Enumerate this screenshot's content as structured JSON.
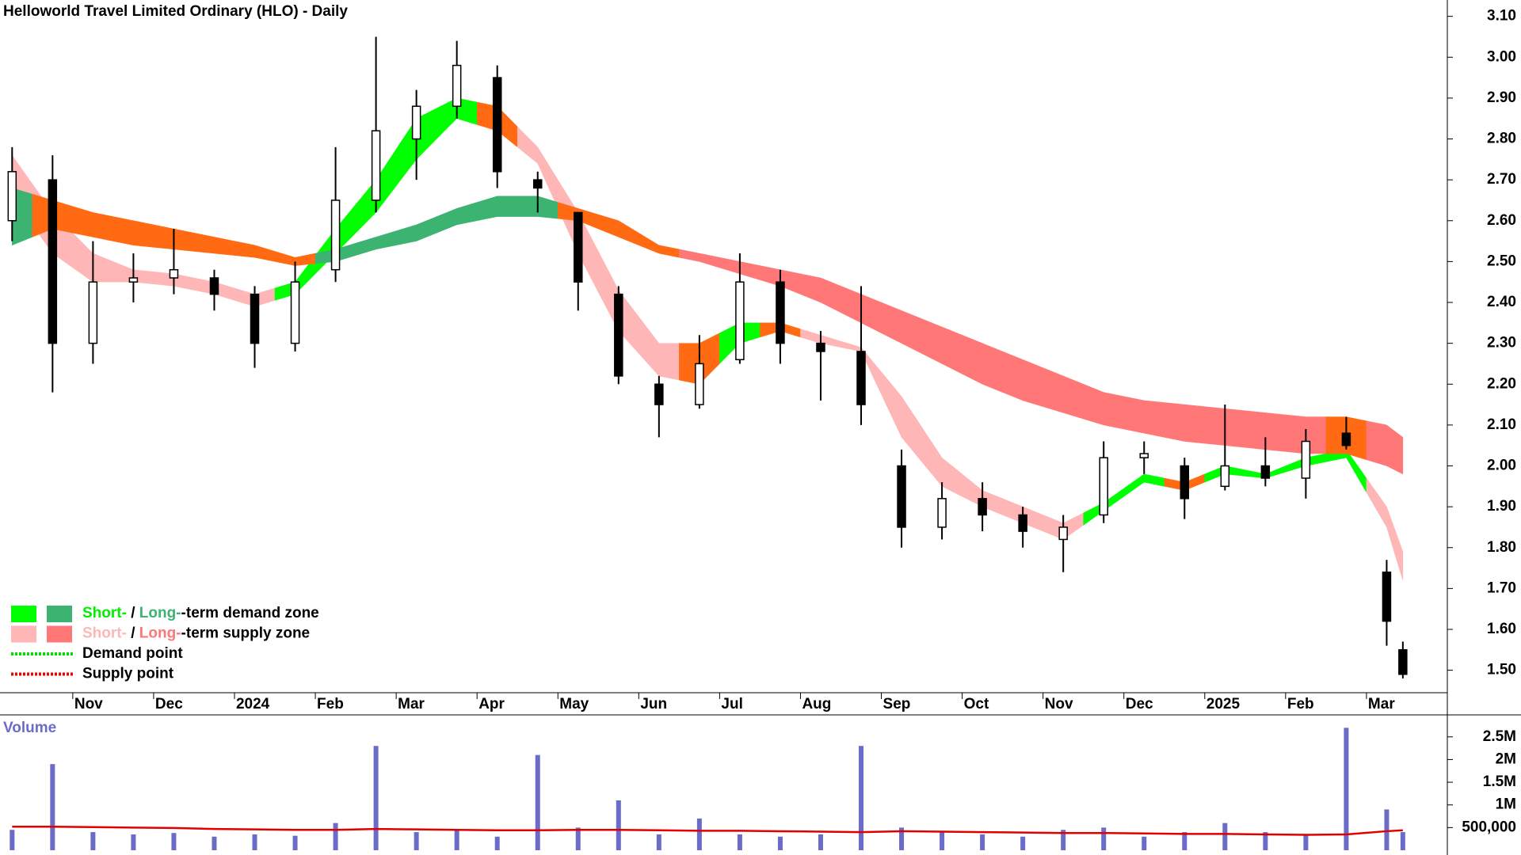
{
  "chart_data": [
    {
      "type": "candlestick",
      "title": "Helloworld Travel Limited Ordinary (HLO) - Daily",
      "x": [
        0.25,
        0.75,
        1.25,
        1.75,
        2.25,
        2.75,
        3.25,
        3.75,
        4.25,
        4.75,
        5.25,
        5.75,
        6.25,
        6.75,
        7.25,
        7.75,
        8.25,
        8.75,
        9.25,
        9.75,
        10.25,
        10.75,
        11.25,
        11.75,
        12.25,
        12.75,
        13.25,
        13.75,
        14.25,
        14.75,
        15.25,
        15.75,
        16.25,
        16.75,
        17.25,
        17.45
      ],
      "open": [
        2.6,
        2.7,
        2.3,
        2.45,
        2.46,
        2.46,
        2.42,
        2.3,
        2.48,
        2.65,
        2.8,
        2.88,
        2.95,
        2.7,
        2.62,
        2.42,
        2.2,
        2.15,
        2.26,
        2.45,
        2.3,
        2.28,
        2.0,
        1.85,
        1.92,
        1.88,
        1.82,
        1.88,
        2.02,
        2.0,
        1.95,
        2.0,
        1.97,
        2.08,
        1.74,
        1.55
      ],
      "high": [
        2.78,
        2.76,
        2.55,
        2.52,
        2.58,
        2.48,
        2.44,
        2.5,
        2.78,
        3.05,
        2.92,
        3.04,
        2.98,
        2.72,
        2.62,
        2.44,
        2.22,
        2.32,
        2.52,
        2.48,
        2.33,
        2.44,
        2.04,
        1.96,
        1.96,
        1.9,
        1.88,
        2.06,
        2.06,
        2.02,
        2.15,
        2.07,
        2.09,
        2.12,
        1.77,
        1.57
      ],
      "low": [
        2.55,
        2.18,
        2.25,
        2.4,
        2.42,
        2.38,
        2.24,
        2.28,
        2.45,
        2.62,
        2.7,
        2.85,
        2.68,
        2.62,
        2.38,
        2.2,
        2.07,
        2.14,
        2.25,
        2.25,
        2.16,
        2.1,
        1.8,
        1.82,
        1.84,
        1.8,
        1.74,
        1.86,
        1.98,
        1.87,
        1.94,
        1.95,
        1.92,
        2.04,
        1.56,
        1.48
      ],
      "close": [
        2.72,
        2.3,
        2.45,
        2.46,
        2.48,
        2.42,
        2.3,
        2.45,
        2.65,
        2.82,
        2.88,
        2.98,
        2.72,
        2.68,
        2.45,
        2.22,
        2.15,
        2.25,
        2.45,
        2.3,
        2.28,
        2.15,
        1.85,
        1.92,
        1.88,
        1.84,
        1.85,
        2.02,
        2.03,
        1.92,
        2.0,
        1.97,
        2.06,
        2.05,
        1.62,
        1.49
      ],
      "zones": [
        {
          "lower": [
            2.66,
            2.52,
            2.45,
            2.45,
            2.44,
            2.42,
            2.39,
            2.42,
            2.52,
            2.62,
            2.75,
            2.85,
            2.82,
            2.74,
            2.52,
            2.33,
            2.22,
            2.2,
            2.3,
            2.33,
            2.3,
            2.28,
            2.07,
            1.95,
            1.9,
            1.86,
            1.82,
            1.89,
            1.96,
            1.94,
            1.98,
            1.97,
            2.0,
            2.02,
            1.85,
            1.72
          ],
          "upper": [
            2.76,
            2.62,
            2.52,
            2.48,
            2.47,
            2.45,
            2.42,
            2.45,
            2.58,
            2.7,
            2.85,
            2.9,
            2.88,
            2.78,
            2.62,
            2.43,
            2.3,
            2.3,
            2.35,
            2.35,
            2.32,
            2.29,
            2.17,
            2.02,
            1.94,
            1.9,
            1.86,
            1.91,
            1.98,
            1.96,
            2.0,
            1.98,
            2.02,
            2.04,
            1.9,
            1.79
          ],
          "colors": [
            "#ffb6b6",
            "#ffb6b6",
            "#ffb6b6",
            "#ffb6b6",
            "#ffb6b6",
            "#ffb6b6",
            "#ffb6b6",
            "#00ff00",
            "#00ff00",
            "#00ff00",
            "#00ff00",
            "#00ff00",
            "#ff6a13",
            "#ffb6b6",
            "#ffb6b6",
            "#ffb6b6",
            "#ffb6b6",
            "#ff6a13",
            "#00ff00",
            "#ff6a13",
            "#ffb6b6",
            "#ffb6b6",
            "#ffb6b6",
            "#ffb6b6",
            "#ffb6b6",
            "#ffb6b6",
            "#ffb6b6",
            "#00ff00",
            "#00ff00",
            "#ff6a13",
            "#00ff00",
            "#00ff00",
            "#00ff00",
            "#00ff00",
            "#ffb6b6",
            "#ffb6b6"
          ]
        },
        {
          "lower": [
            2.54,
            2.58,
            2.56,
            2.54,
            2.53,
            2.52,
            2.51,
            2.49,
            2.5,
            2.53,
            2.55,
            2.59,
            2.61,
            2.61,
            2.6,
            2.56,
            2.52,
            2.5,
            2.47,
            2.44,
            2.4,
            2.35,
            2.3,
            2.25,
            2.2,
            2.16,
            2.13,
            2.1,
            2.08,
            2.06,
            2.05,
            2.04,
            2.03,
            2.03,
            2.0,
            1.98
          ],
          "upper": [
            2.68,
            2.65,
            2.62,
            2.6,
            2.58,
            2.56,
            2.54,
            2.51,
            2.53,
            2.56,
            2.59,
            2.63,
            2.66,
            2.66,
            2.63,
            2.6,
            2.54,
            2.52,
            2.5,
            2.48,
            2.46,
            2.42,
            2.38,
            2.34,
            2.3,
            2.26,
            2.22,
            2.18,
            2.16,
            2.15,
            2.14,
            2.13,
            2.12,
            2.12,
            2.1,
            2.07
          ],
          "colors": [
            "#3cb371",
            "#ff6a13",
            "#ff6a13",
            "#ff6a13",
            "#ff6a13",
            "#ff6a13",
            "#ff6a13",
            "#ff6a13",
            "#3cb371",
            "#3cb371",
            "#3cb371",
            "#3cb371",
            "#3cb371",
            "#3cb371",
            "#ff6a13",
            "#ff6a13",
            "#ff6a13",
            "#ff7777",
            "#ff7777",
            "#ff7777",
            "#ff7777",
            "#ff7777",
            "#ff7777",
            "#ff7777",
            "#ff7777",
            "#ff7777",
            "#ff7777",
            "#ff7777",
            "#ff7777",
            "#ff7777",
            "#ff7777",
            "#ff7777",
            "#ff7777",
            "#ff6a13",
            "#ff7777",
            "#ff7777"
          ]
        }
      ],
      "xlim": [
        0.1,
        18
      ],
      "xticks": [
        {
          "value": 1,
          "label": "Nov"
        },
        {
          "value": 2,
          "label": "Dec"
        },
        {
          "value": 3,
          "label": "2024"
        },
        {
          "value": 4,
          "label": "Feb"
        },
        {
          "value": 5,
          "label": "Mar"
        },
        {
          "value": 6,
          "label": "Apr"
        },
        {
          "value": 7,
          "label": "May"
        },
        {
          "value": 8,
          "label": "Jun"
        },
        {
          "value": 9,
          "label": "Jul"
        },
        {
          "value": 10,
          "label": "Aug"
        },
        {
          "value": 11,
          "label": "Sep"
        },
        {
          "value": 12,
          "label": "Oct"
        },
        {
          "value": 13,
          "label": "Nov"
        },
        {
          "value": 14,
          "label": "Dec"
        },
        {
          "value": 15,
          "label": "2025"
        },
        {
          "value": 16,
          "label": "Feb"
        },
        {
          "value": 17,
          "label": "Mar"
        }
      ],
      "ylim": [
        1.445,
        3.14
      ],
      "yticks": [
        {
          "value": 1.5,
          "label": "1.50"
        },
        {
          "value": 1.6,
          "label": "1.60"
        },
        {
          "value": 1.7,
          "label": "1.70"
        },
        {
          "value": 1.8,
          "label": "1.80"
        },
        {
          "value": 1.9,
          "label": "1.90"
        },
        {
          "value": 2.0,
          "label": "2.00"
        },
        {
          "value": 2.1,
          "label": "2.10"
        },
        {
          "value": 2.2,
          "label": "2.20"
        },
        {
          "value": 2.3,
          "label": "2.30"
        },
        {
          "value": 2.4,
          "label": "2.40"
        },
        {
          "value": 2.5,
          "label": "2.50"
        },
        {
          "value": 2.6,
          "label": "2.60"
        },
        {
          "value": 2.7,
          "label": "2.70"
        },
        {
          "value": 2.8,
          "label": "2.80"
        },
        {
          "value": 2.9,
          "label": "2.90"
        },
        {
          "value": 3.0,
          "label": "3.00"
        },
        {
          "value": 3.1,
          "label": "3.10"
        }
      ],
      "legend": [
        {
          "swatches": [
            "#00ff00",
            "#3cb371"
          ],
          "parts": [
            {
              "text": "Short-",
              "color": "#00ee00"
            },
            {
              "text": " / ",
              "color": "#000000"
            },
            {
              "text": "Long-",
              "color": "#3cb371"
            },
            {
              "text": "-term demand zone",
              "color": "#000000"
            }
          ]
        },
        {
          "swatches": [
            "#ffb6b6",
            "#ff7777"
          ],
          "parts": [
            {
              "text": "Short-",
              "color": "#ffb6b6"
            },
            {
              "text": " / ",
              "color": "#000000"
            },
            {
              "text": "Long-",
              "color": "#ff7777"
            },
            {
              "text": "-term supply zone",
              "color": "#000000"
            }
          ]
        },
        {
          "line": "#00dd00",
          "parts": [
            {
              "text": "Demand point",
              "color": "#000000"
            }
          ]
        },
        {
          "line": "#ee0000",
          "parts": [
            {
              "text": "Supply point",
              "color": "#000000"
            }
          ]
        }
      ]
    },
    {
      "type": "bar",
      "title": "Volume",
      "x": [
        0.25,
        0.75,
        1.25,
        1.75,
        2.25,
        2.75,
        3.25,
        3.75,
        4.25,
        4.75,
        5.25,
        5.75,
        6.25,
        6.75,
        7.25,
        7.75,
        8.25,
        8.75,
        9.25,
        9.75,
        10.25,
        10.75,
        11.25,
        11.75,
        12.25,
        12.75,
        13.25,
        13.75,
        14.25,
        14.75,
        15.25,
        15.75,
        16.25,
        16.75,
        17.25,
        17.45
      ],
      "values": [
        450000,
        1900000,
        400000,
        350000,
        380000,
        300000,
        350000,
        320000,
        600000,
        2300000,
        400000,
        450000,
        300000,
        2100000,
        500000,
        1100000,
        350000,
        700000,
        350000,
        300000,
        350000,
        2300000,
        500000,
        400000,
        350000,
        300000,
        450000,
        500000,
        300000,
        400000,
        600000,
        400000,
        350000,
        2700000,
        900000,
        400000
      ],
      "color": "#6b6bc8",
      "average": {
        "values": [
          520000,
          520000,
          510000,
          500000,
          490000,
          470000,
          460000,
          450000,
          450000,
          470000,
          460000,
          450000,
          440000,
          440000,
          450000,
          450000,
          440000,
          430000,
          430000,
          420000,
          410000,
          400000,
          420000,
          410000,
          400000,
          390000,
          380000,
          380000,
          370000,
          360000,
          360000,
          350000,
          340000,
          350000,
          420000,
          440000
        ],
        "color": "#e00000"
      },
      "xlim": [
        0.1,
        18
      ],
      "ylim": [
        0,
        2950000
      ],
      "yticks": [
        {
          "value": 500000,
          "label": "500,000"
        },
        {
          "value": 1000000,
          "label": "1M"
        },
        {
          "value": 1500000,
          "label": "1.5M"
        },
        {
          "value": 2000000,
          "label": "2M"
        },
        {
          "value": 2500000,
          "label": "2.5M"
        }
      ]
    }
  ]
}
